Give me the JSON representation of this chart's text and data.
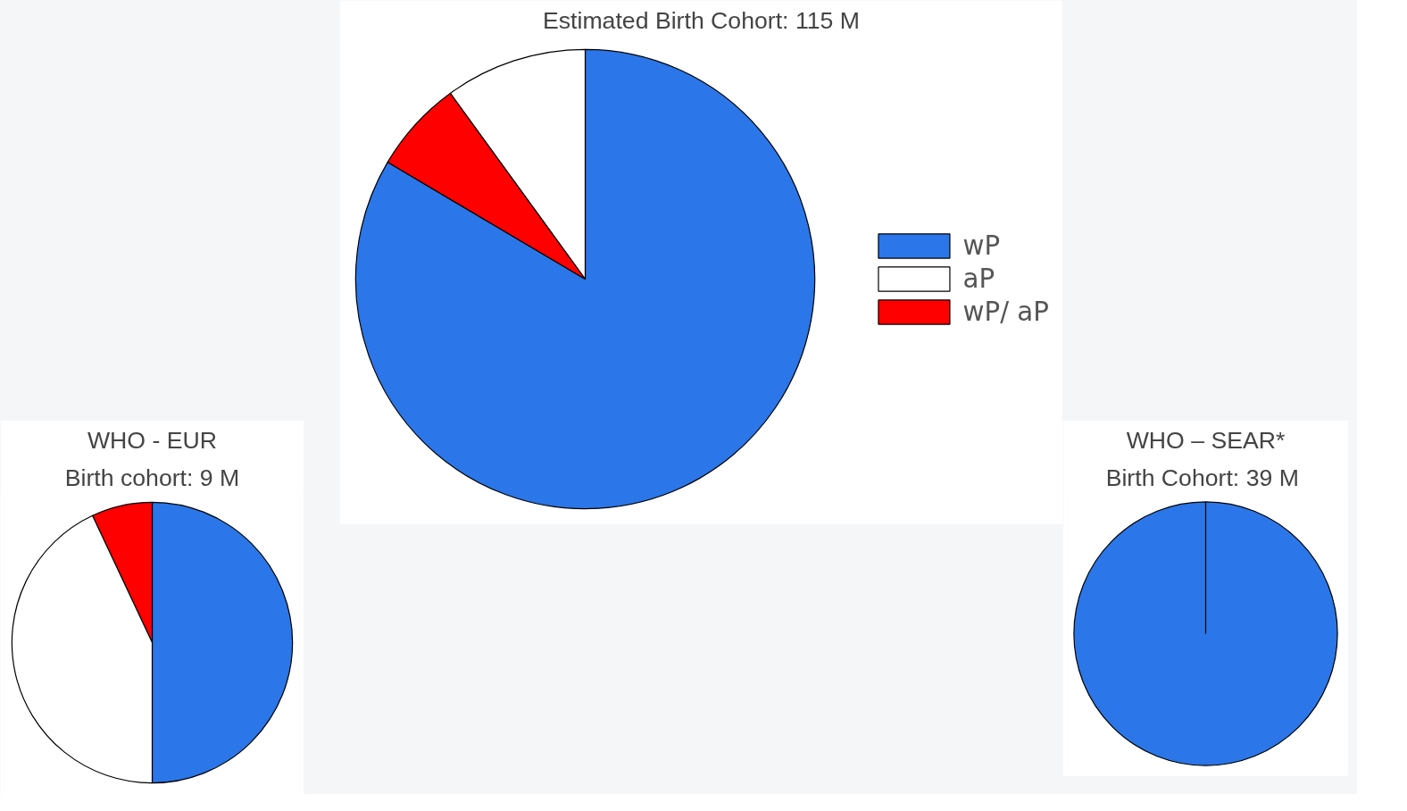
{
  "chart_data": [
    {
      "type": "pie",
      "title": "Estimated Birth Cohort: 115 M",
      "categories": [
        "wP",
        "aP",
        "wP/ aP"
      ],
      "values": [
        83.5,
        10,
        6.5
      ],
      "colors": [
        "#2b76e8",
        "#ffffff",
        "#ff0000"
      ],
      "legend": "right"
    },
    {
      "type": "pie",
      "title": "WHO - EUR",
      "subtitle": "Birth cohort: 9 M",
      "categories": [
        null,
        null,
        null
      ],
      "values": [
        50,
        7,
        43
      ],
      "colors": [
        "#2b76e8",
        "#ff0000",
        "#ffffff"
      ]
    },
    {
      "type": "pie",
      "title": "WHO – SEAR*",
      "subtitle": "Birth Cohort:  39 M",
      "categories": [
        null
      ],
      "values": [
        100
      ],
      "colors": [
        "#2b76e8"
      ]
    }
  ]
}
